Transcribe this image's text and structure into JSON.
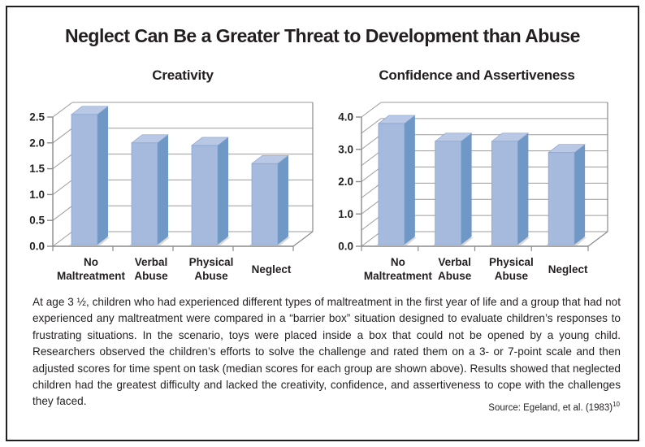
{
  "figure": {
    "title": "Neglect Can Be a Greater Threat to Development than Abuse",
    "description": "At age 3 ½, children who had experienced different types of maltreatment in the first year of life and a group that had not experienced any maltreatment were compared in a “barrier box” situation designed to evaluate children’s responses to frustrating situations. In the scenario, toys were placed inside a box that could not be opened by a young child. Researchers observed the children’s efforts to solve the challenge and rated them on a 3- or 7-point scale and then adjusted scores for time spent on task (median scores for each group are shown above). Results showed that neglected children had the greatest difficulty and lacked the creativity, confidence, and assertiveness to cope with the challenges they faced.",
    "source_prefix": "Source: Egeland, et al. (1983)",
    "source_superscript": "10"
  },
  "chart_data": [
    {
      "type": "bar",
      "style": "3d",
      "title": "Creativity",
      "categories": [
        "No Maltreatment",
        "Verbal Abuse",
        "Physical Abuse",
        "Neglect"
      ],
      "category_lines": [
        [
          "No",
          "Maltreatment"
        ],
        [
          "Verbal",
          "Abuse"
        ],
        [
          "Physical",
          "Abuse"
        ],
        [
          "Neglect"
        ]
      ],
      "values": [
        2.55,
        2.0,
        1.95,
        1.6
      ],
      "ylim": [
        0,
        2.5
      ],
      "y_grid_step": 0.5,
      "y_label_step": 0.5,
      "y_tick_labels": [
        "0.0",
        "0.5",
        "1.0",
        "1.5",
        "2.0",
        "2.5"
      ],
      "xlabel": "",
      "ylabel": "",
      "grid": true,
      "legend": false
    },
    {
      "type": "bar",
      "style": "3d",
      "title": "Confidence and Assertiveness",
      "categories": [
        "No Maltreatment",
        "Verbal Abuse",
        "Physical Abuse",
        "Neglect"
      ],
      "category_lines": [
        [
          "No",
          "Maltreatment"
        ],
        [
          "Verbal",
          "Abuse"
        ],
        [
          "Physical",
          "Abuse"
        ],
        [
          "Neglect"
        ]
      ],
      "values": [
        3.8,
        3.25,
        3.25,
        2.9
      ],
      "ylim": [
        0,
        4.0
      ],
      "y_grid_step": 0.5,
      "y_label_step": 1.0,
      "y_tick_labels": [
        "0.0",
        "1.0",
        "2.0",
        "3.0",
        "4.0"
      ],
      "xlabel": "",
      "ylabel": "",
      "grid": true,
      "legend": false
    }
  ],
  "colors": {
    "bar_front": "#a5badd",
    "bar_side": "#7098c6",
    "bar_top": "#b8c8e5",
    "bar_edge": "#84a2cf",
    "bar_base": "#d8d8d8",
    "gridline": "#9b9b9b",
    "axis": "#8a8a8a",
    "text": "#231f20",
    "border": "#231f20",
    "background": "#ffffff"
  }
}
